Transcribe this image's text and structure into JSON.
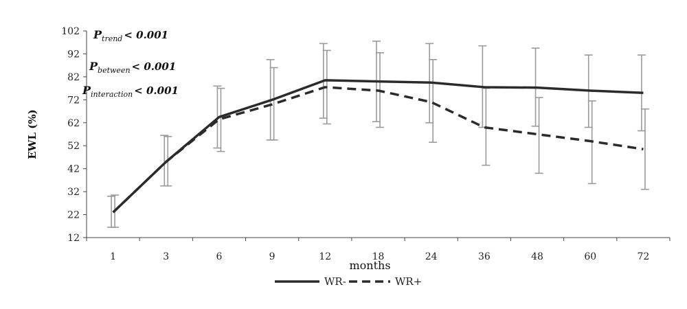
{
  "chart_data": {
    "type": "line",
    "xlabel": "months",
    "ylabel": "EWL (%)",
    "categories": [
      "1",
      "3",
      "6",
      "9",
      "12",
      "18",
      "24",
      "36",
      "48",
      "60",
      "72"
    ],
    "y_ticks": [
      12,
      22,
      32,
      42,
      52,
      62,
      72,
      82,
      92,
      102
    ],
    "ylim": [
      12,
      102
    ],
    "grid": false,
    "legend_position": "bottom-center",
    "series": [
      {
        "name": "WR-",
        "style": "solid",
        "color": "#2b2b2b",
        "values": [
          23,
          45,
          64.5,
          72,
          80.5,
          80,
          79.5,
          77.5,
          77.3,
          76,
          75
        ],
        "error_upper": [
          30,
          56.5,
          78,
          89.5,
          96.5,
          97.5,
          96.5,
          95.5,
          94.5,
          91.5,
          91.5
        ],
        "error_lower": [
          16.5,
          34.5,
          51,
          54.5,
          64,
          62.5,
          62,
          60,
          60.5,
          60,
          58.5
        ]
      },
      {
        "name": "WR+",
        "style": "dashed",
        "color": "#2b2b2b",
        "values": [
          23,
          45,
          63.5,
          70,
          77.5,
          76,
          71,
          60,
          57,
          54,
          50.5
        ],
        "error_upper": [
          30.5,
          56,
          77,
          86,
          93.5,
          92.5,
          89.5,
          77,
          73,
          71.5,
          68
        ],
        "error_lower": [
          16.5,
          34.5,
          49.5,
          54.5,
          61.5,
          60,
          53.5,
          43.5,
          40,
          35.5,
          33
        ]
      }
    ],
    "annotations": [
      {
        "main": "P",
        "sub": "trend",
        "value": "< 0.001"
      },
      {
        "main": "P",
        "sub": "between",
        "value": "< 0.001"
      },
      {
        "main": "P",
        "sub": "interaction",
        "value": "< 0.001"
      }
    ]
  }
}
